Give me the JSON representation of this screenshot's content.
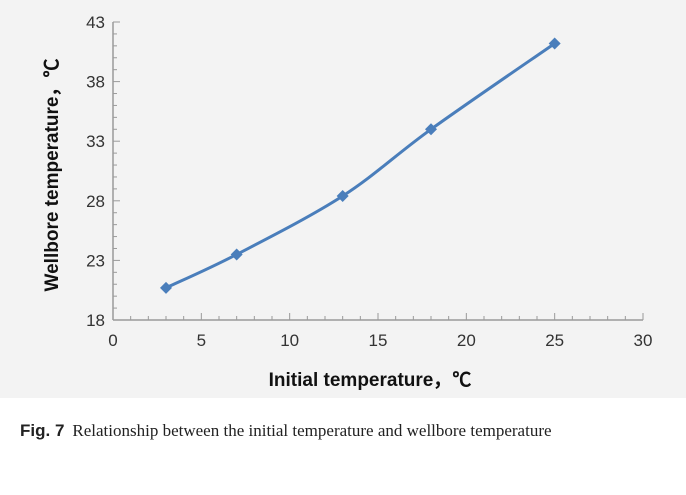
{
  "chart_data": {
    "type": "line",
    "xlabel": "Initial temperature，℃",
    "ylabel": "Wellbore temperature，℃",
    "xlim": [
      0,
      30
    ],
    "ylim": [
      18,
      43
    ],
    "xticks": [
      0,
      5,
      10,
      15,
      20,
      25,
      30
    ],
    "yticks": [
      18,
      23,
      28,
      33,
      38,
      43
    ],
    "grid": false,
    "series": [
      {
        "x": [
          3,
          7,
          13,
          18,
          25
        ],
        "y": [
          20.7,
          23.5,
          28.4,
          34,
          41.2
        ],
        "color": "#4a7ebb",
        "marker": "diamond"
      }
    ]
  },
  "caption": {
    "label": "Fig. 7",
    "text": "Relationship between the initial temperature and wellbore temperature"
  }
}
